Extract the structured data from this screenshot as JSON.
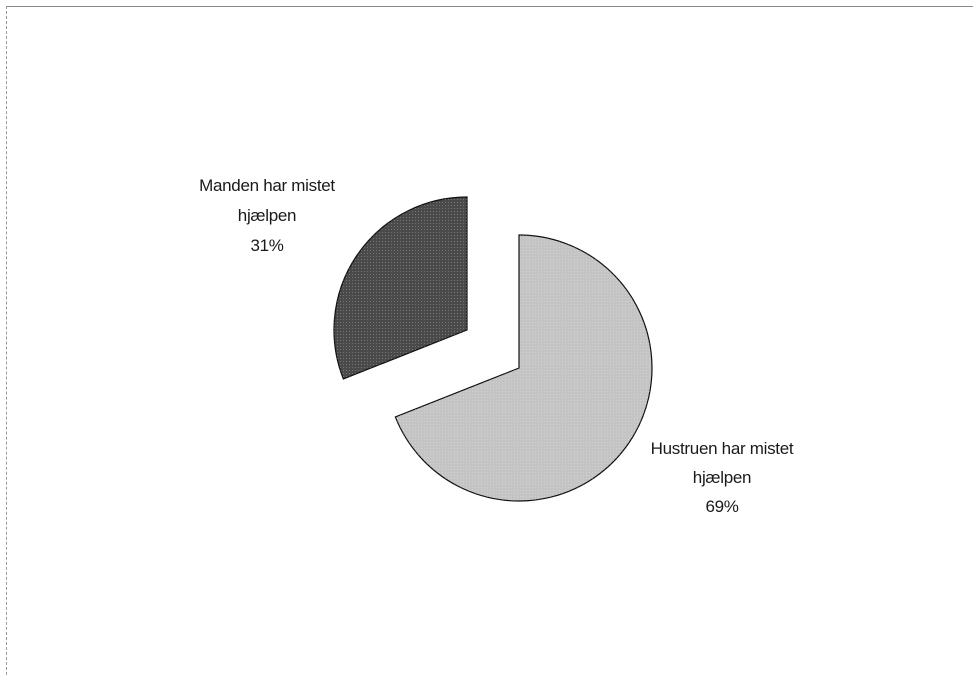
{
  "chart_data": {
    "type": "pie",
    "title": "",
    "exploded": true,
    "slices": [
      {
        "label_lines": [
          "Hustruen har mistet",
          "hjælpen"
        ],
        "percent_label": "69%",
        "value": 69,
        "color": "#c4c4c4"
      },
      {
        "label_lines": [
          "Manden har mistet",
          "hjælpen"
        ],
        "percent_label": "31%",
        "value": 31,
        "color": "#4a4a4a"
      }
    ]
  }
}
